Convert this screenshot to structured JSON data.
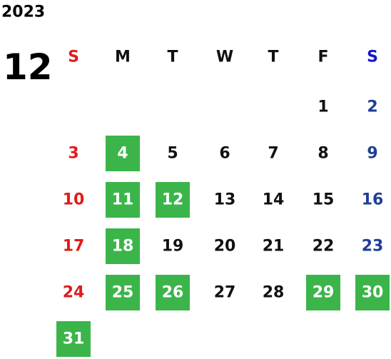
{
  "year": "2023",
  "month": "12",
  "weekdays": [
    "S",
    "M",
    "T",
    "W",
    "T",
    "F",
    "S"
  ],
  "weeks": [
    [
      null,
      null,
      null,
      null,
      null,
      1,
      2
    ],
    [
      3,
      4,
      5,
      6,
      7,
      8,
      9
    ],
    [
      10,
      11,
      12,
      13,
      14,
      15,
      16
    ],
    [
      17,
      18,
      19,
      20,
      21,
      22,
      23
    ],
    [
      24,
      25,
      26,
      27,
      28,
      29,
      30
    ],
    [
      31,
      null,
      null,
      null,
      null,
      null,
      null
    ]
  ],
  "highlighted": [
    4,
    11,
    12,
    18,
    25,
    26,
    29,
    30,
    31
  ],
  "colors": {
    "sunday": "#e01b1b",
    "saturday": "#1f3d99",
    "saturday_header": "#1515d0",
    "highlight": "#3bb54a"
  }
}
